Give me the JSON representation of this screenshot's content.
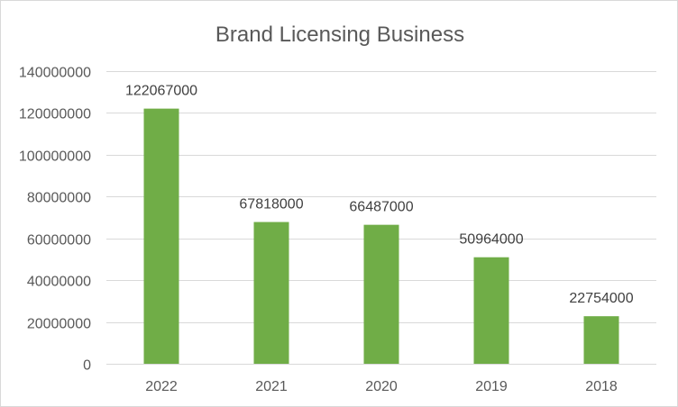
{
  "chart_data": {
    "type": "bar",
    "title": "Brand Licensing Business",
    "xlabel": "",
    "ylabel": "",
    "categories": [
      "2022",
      "2021",
      "2020",
      "2019",
      "2018"
    ],
    "series": [
      {
        "values": [
          122067000,
          67818000,
          66487000,
          50964000,
          22754000
        ]
      }
    ],
    "ylim": [
      0,
      140000000
    ],
    "yticks": [
      0,
      20000000,
      40000000,
      60000000,
      80000000,
      100000000,
      120000000,
      140000000
    ],
    "ytick_labels": [
      "0",
      "20000000",
      "40000000",
      "60000000",
      "80000000",
      "100000000",
      "120000000",
      "140000000"
    ],
    "data_labels": [
      "122067000",
      "67818000",
      "66487000",
      "50964000",
      "22754000"
    ],
    "grid": true,
    "legend": "none",
    "colors": {
      "bar": "#70ad47",
      "grid": "#d9d9d9",
      "text": "#595959"
    }
  }
}
